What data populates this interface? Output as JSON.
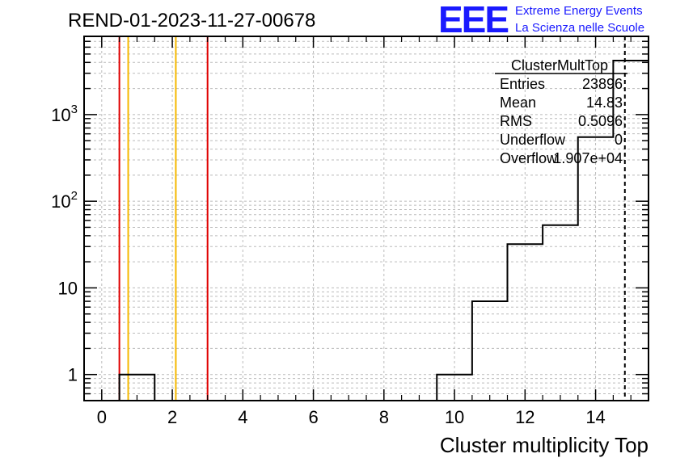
{
  "title": "REND-01-2023-11-27-00678",
  "logo": {
    "text": "EEE",
    "line1": "Extreme Energy Events",
    "line2": "La Scienza nelle Scuole",
    "color": "#1a1aff"
  },
  "stats": {
    "name": "ClusterMultTop",
    "rows": [
      {
        "label": "Entries",
        "value": "23896"
      },
      {
        "label": "Mean",
        "value": "14.83"
      },
      {
        "label": "RMS",
        "value": "0.5096"
      },
      {
        "label": "Underflow",
        "value": "0"
      },
      {
        "label": "Overflow",
        "value": "1.907e+04"
      }
    ]
  },
  "chart_data": {
    "type": "histogram",
    "xlabel": "Cluster multiplicity Top",
    "ylabel": "",
    "xlim": [
      -0.5,
      15.5
    ],
    "ylim": [
      0.5,
      8000
    ],
    "yscale": "log",
    "grid": true,
    "x_ticks": [
      "0",
      "2",
      "4",
      "6",
      "8",
      "10",
      "12",
      "14"
    ],
    "y_ticks": [
      {
        "value": 1,
        "label": "1"
      },
      {
        "value": 10,
        "label": "10"
      },
      {
        "value": 100,
        "base": "10",
        "exp": "2"
      },
      {
        "value": 1000,
        "base": "10",
        "exp": "3"
      }
    ],
    "bin_edges": [
      -0.5,
      0.5,
      1.5,
      2.5,
      3.5,
      4.5,
      5.5,
      6.5,
      7.5,
      8.5,
      9.5,
      10.5,
      11.5,
      12.5,
      13.5,
      14.5,
      15.5
    ],
    "counts": [
      0,
      1,
      0,
      0,
      0,
      0,
      0,
      0,
      0,
      0,
      1,
      7,
      32,
      53,
      550,
      4200
    ],
    "vertical_lines": [
      {
        "x": 0.5,
        "color": "#e00000"
      },
      {
        "x": 0.75,
        "color": "#f5b800"
      },
      {
        "x": 2.1,
        "color": "#f5b800"
      },
      {
        "x": 3.0,
        "color": "#e00000"
      },
      {
        "x": 14.83,
        "color": "#000000",
        "dashed": true
      }
    ]
  }
}
